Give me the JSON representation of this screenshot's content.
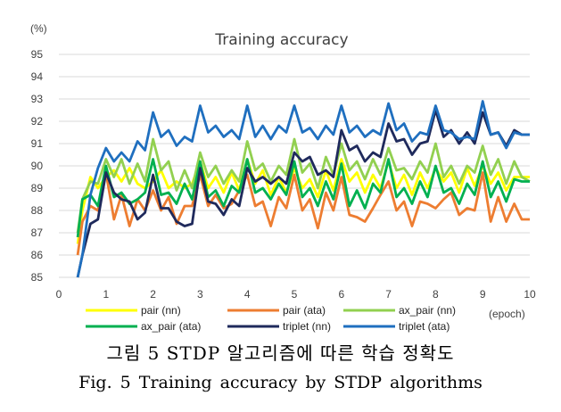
{
  "chart_data": {
    "type": "line",
    "title": "Training accuracy",
    "ylabel": "(%)",
    "xlabel": "(epoch)",
    "xlim": [
      0,
      10
    ],
    "ylim": [
      85,
      95
    ],
    "x_ticks": [
      "0",
      "1",
      "2",
      "3",
      "4",
      "5",
      "6",
      "7",
      "8",
      "9",
      "10"
    ],
    "y_ticks": [
      "85",
      "86",
      "87",
      "88",
      "89",
      "90",
      "91",
      "92",
      "93",
      "94",
      "95"
    ],
    "grid": "horizontal",
    "legend_position": "bottom",
    "x": [
      0.4,
      0.5,
      0.67,
      0.83,
      1.0,
      1.17,
      1.33,
      1.5,
      1.67,
      1.83,
      2.0,
      2.17,
      2.33,
      2.5,
      2.67,
      2.83,
      3.0,
      3.17,
      3.33,
      3.5,
      3.67,
      3.83,
      4.0,
      4.17,
      4.33,
      4.5,
      4.67,
      4.83,
      5.0,
      5.17,
      5.33,
      5.5,
      5.67,
      5.83,
      6.0,
      6.17,
      6.33,
      6.5,
      6.67,
      6.83,
      7.0,
      7.17,
      7.33,
      7.5,
      7.67,
      7.83,
      8.0,
      8.17,
      8.33,
      8.5,
      8.67,
      8.83,
      9.0,
      9.17,
      9.33,
      9.5,
      9.67,
      9.83,
      10.0
    ],
    "series": [
      {
        "name": "pair (nn)",
        "color": "#ffff00",
        "values": [
          86.5,
          88.0,
          89.5,
          89.0,
          89.5,
          89.8,
          89.3,
          89.9,
          89.2,
          89.0,
          89.3,
          89.8,
          89.0,
          89.3,
          89.0,
          89.2,
          90.2,
          89.0,
          89.5,
          88.8,
          89.7,
          88.9,
          90.3,
          89.2,
          89.8,
          88.7,
          89.5,
          88.8,
          89.9,
          89.0,
          89.4,
          88.6,
          89.8,
          88.9,
          90.3,
          89.3,
          89.7,
          88.8,
          89.6,
          89.0,
          90.2,
          89.0,
          89.6,
          88.7,
          89.7,
          89.0,
          89.9,
          89.3,
          89.7,
          88.8,
          89.9,
          89.1,
          90.0,
          89.2,
          89.7,
          88.9,
          89.5,
          89.5,
          89.5
        ]
      },
      {
        "name": "pair (ata)",
        "color": "#ed7d31",
        "values": [
          86.0,
          87.5,
          88.2,
          88.0,
          89.7,
          87.6,
          88.7,
          87.3,
          88.5,
          88.0,
          88.9,
          88.0,
          88.6,
          87.4,
          88.2,
          88.2,
          89.6,
          88.2,
          88.7,
          88.1,
          88.3,
          88.9,
          89.6,
          88.2,
          88.4,
          87.3,
          88.6,
          88.1,
          89.6,
          88.0,
          88.5,
          87.2,
          88.8,
          88.0,
          89.5,
          87.8,
          87.7,
          87.5,
          88.1,
          88.7,
          89.3,
          88.0,
          88.4,
          87.3,
          88.4,
          88.3,
          88.1,
          88.5,
          88.8,
          87.8,
          88.1,
          88.0,
          89.7,
          87.5,
          88.6,
          87.5,
          88.3,
          87.6,
          87.6
        ]
      },
      {
        "name": "ax_pair (nn)",
        "color": "#92d050",
        "values": [
          87.0,
          88.5,
          89.3,
          89.2,
          90.3,
          89.5,
          90.3,
          89.2,
          90.1,
          89.3,
          91.2,
          89.8,
          90.2,
          88.9,
          89.8,
          89.0,
          90.6,
          89.5,
          90.0,
          89.2,
          89.8,
          89.3,
          91.1,
          89.8,
          90.1,
          89.3,
          90.0,
          89.6,
          91.2,
          89.7,
          90.1,
          89.0,
          90.4,
          89.6,
          91.0,
          89.8,
          90.2,
          89.4,
          90.3,
          89.6,
          90.8,
          89.8,
          89.9,
          89.4,
          90.2,
          89.7,
          91.0,
          89.5,
          90.0,
          89.2,
          90.0,
          89.7,
          90.9,
          89.6,
          90.3,
          89.2,
          90.2,
          89.5,
          89.3
        ]
      },
      {
        "name": "ax_pair (ata)",
        "color": "#00b050",
        "values": [
          86.8,
          88.5,
          88.7,
          88.2,
          90.0,
          88.6,
          88.8,
          88.3,
          88.5,
          88.8,
          90.3,
          88.7,
          88.8,
          88.3,
          89.2,
          88.5,
          90.2,
          88.6,
          88.9,
          88.2,
          89.1,
          88.8,
          90.3,
          88.8,
          89.0,
          88.5,
          89.2,
          88.7,
          90.2,
          88.6,
          89.0,
          88.2,
          89.3,
          88.5,
          90.1,
          88.2,
          88.9,
          88.1,
          89.2,
          88.8,
          90.3,
          88.6,
          89.0,
          88.3,
          89.3,
          88.6,
          90.0,
          88.8,
          89.0,
          88.3,
          89.2,
          88.7,
          90.2,
          88.6,
          89.3,
          88.4,
          89.4,
          89.3,
          89.3
        ]
      },
      {
        "name": "triplet (nn)",
        "color": "#1f2a5c",
        "values": [
          85.0,
          86.0,
          87.4,
          87.6,
          89.7,
          88.8,
          88.5,
          88.4,
          87.6,
          87.9,
          89.6,
          88.1,
          88.1,
          87.5,
          87.3,
          87.4,
          89.9,
          88.4,
          88.3,
          87.8,
          88.5,
          88.2,
          89.9,
          89.3,
          89.5,
          89.2,
          89.5,
          89.2,
          90.6,
          90.2,
          90.4,
          89.6,
          89.8,
          89.5,
          91.6,
          90.7,
          90.9,
          90.2,
          90.6,
          90.4,
          91.9,
          91.1,
          91.2,
          90.5,
          91.0,
          91.1,
          92.5,
          91.3,
          91.6,
          91.0,
          91.5,
          91.0,
          92.4,
          91.4,
          91.5,
          90.9,
          91.6,
          91.4,
          91.4
        ]
      },
      {
        "name": "triplet (ata)",
        "color": "#1f6fbf",
        "values": [
          84.8,
          86.0,
          88.7,
          89.9,
          90.8,
          90.2,
          90.6,
          90.2,
          91.1,
          90.7,
          92.4,
          91.3,
          91.6,
          90.9,
          91.3,
          91.1,
          92.7,
          91.5,
          91.8,
          91.3,
          91.6,
          91.2,
          92.7,
          91.3,
          91.8,
          91.2,
          91.8,
          91.5,
          92.7,
          91.5,
          91.7,
          91.2,
          91.8,
          91.4,
          92.7,
          91.5,
          91.8,
          91.3,
          91.6,
          91.4,
          92.8,
          91.6,
          91.9,
          91.1,
          91.5,
          91.4,
          92.7,
          91.6,
          91.5,
          91.2,
          91.3,
          91.2,
          92.9,
          91.4,
          91.5,
          90.8,
          91.5,
          91.4,
          91.4
        ]
      }
    ]
  },
  "caption": {
    "korean": "그림 5 STDP 알고리즘에 따른 학습 정확도",
    "english": "Fig. 5 Training accuracy by STDP algorithms"
  }
}
